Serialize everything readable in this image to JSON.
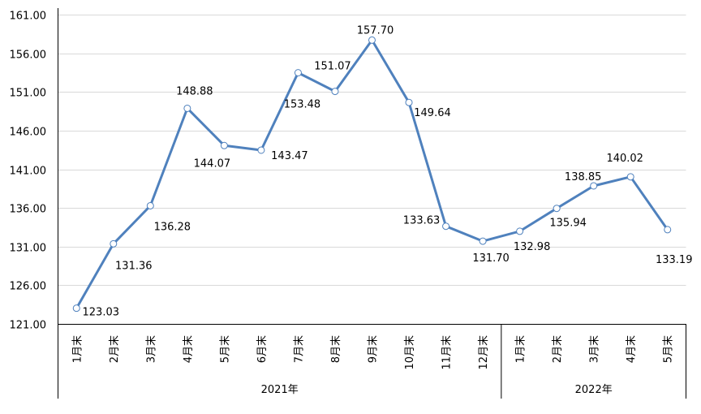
{
  "chart_data": {
    "type": "line",
    "title": "",
    "xlabel": "",
    "ylabel": "",
    "ylim": [
      121,
      161
    ],
    "y_ticks": [
      "121.00",
      "126.00",
      "131.00",
      "136.00",
      "141.00",
      "146.00",
      "151.00",
      "156.00",
      "161.00"
    ],
    "grid": "horizontal",
    "line_color": "#4F81BD",
    "marker": "hollow-circle",
    "categories": [
      "1月末",
      "2月末",
      "3月末",
      "4月末",
      "5月末",
      "6月末",
      "7月末",
      "8月末",
      "9月末",
      "10月末",
      "11月末",
      "12月末",
      "1月末",
      "2月末",
      "3月末",
      "4月末",
      "5月末"
    ],
    "groups": [
      {
        "label": "2021年",
        "count": 12
      },
      {
        "label": "2022年",
        "count": 5
      }
    ],
    "values": [
      123.03,
      131.36,
      136.28,
      148.88,
      144.07,
      143.47,
      153.48,
      151.07,
      157.7,
      149.64,
      133.63,
      131.7,
      132.98,
      135.94,
      138.85,
      140.02,
      133.19
    ],
    "data_labels": [
      "123.03",
      "131.36",
      "136.28",
      "148.88",
      "144.07",
      "143.47",
      "153.48",
      "151.07",
      "157.70",
      "149.64",
      "133.63",
      "131.70",
      "132.98",
      "135.94",
      "138.85",
      "140.02",
      "133.19"
    ]
  }
}
